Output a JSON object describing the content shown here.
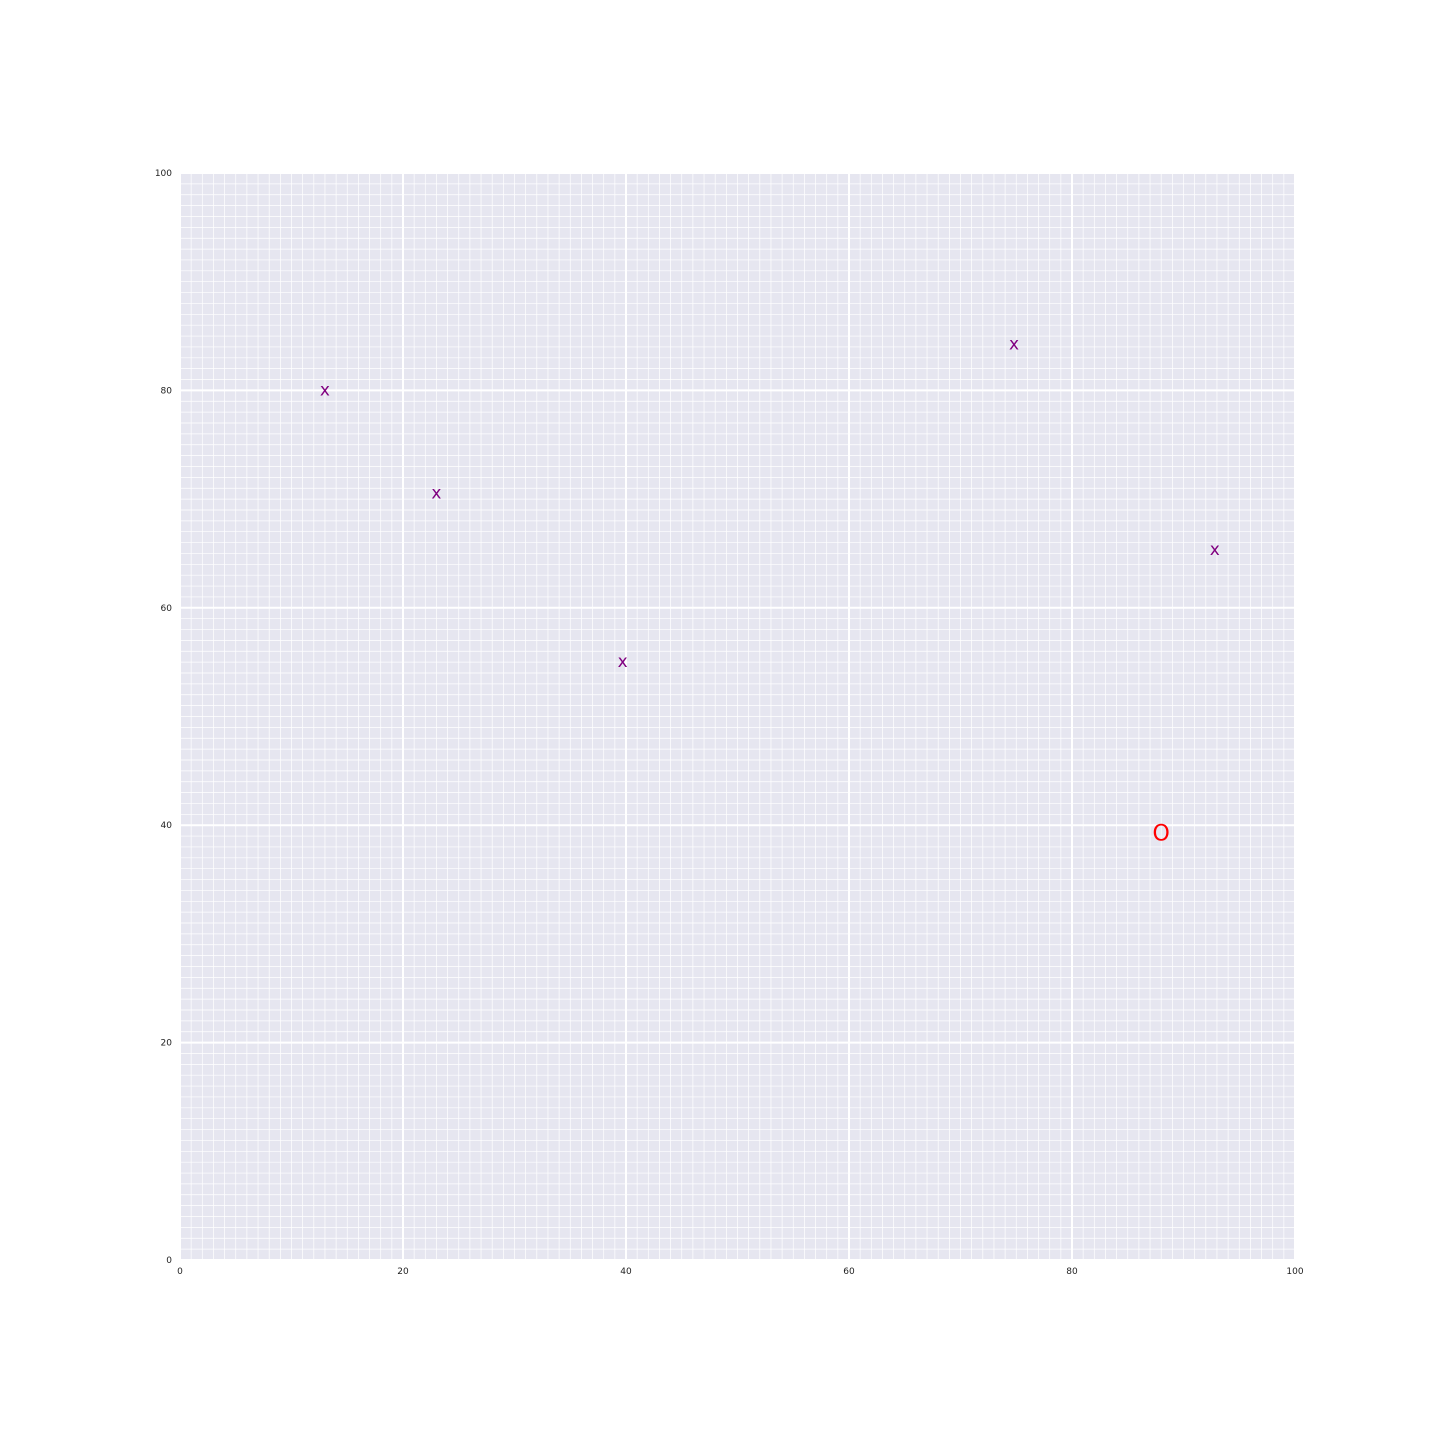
{
  "chart_data": {
    "type": "scatter",
    "title": "",
    "xlabel": "",
    "ylabel": "",
    "xlim": [
      0,
      100
    ],
    "ylim": [
      0,
      100
    ],
    "grid": true,
    "major_tick_step": 20,
    "minor_grid_step": 1,
    "x_ticks": [
      "0",
      "20",
      "40",
      "60",
      "80",
      "100"
    ],
    "y_ticks": [
      "0",
      "20",
      "40",
      "60",
      "80",
      "100"
    ],
    "series": [
      {
        "marker": "x",
        "color": "#800080",
        "points": [
          {
            "x": 13,
            "y": 80
          },
          {
            "x": 23,
            "y": 70.5
          },
          {
            "x": 39.7,
            "y": 55
          },
          {
            "x": 74.8,
            "y": 84.2
          },
          {
            "x": 92.8,
            "y": 65.3
          }
        ]
      },
      {
        "marker": "O",
        "color": "#ff0000",
        "points": [
          {
            "x": 88,
            "y": 39.2
          }
        ]
      }
    ],
    "colors": {
      "plot_background": "#e6e6f0",
      "grid_line": "#ffffff"
    }
  }
}
